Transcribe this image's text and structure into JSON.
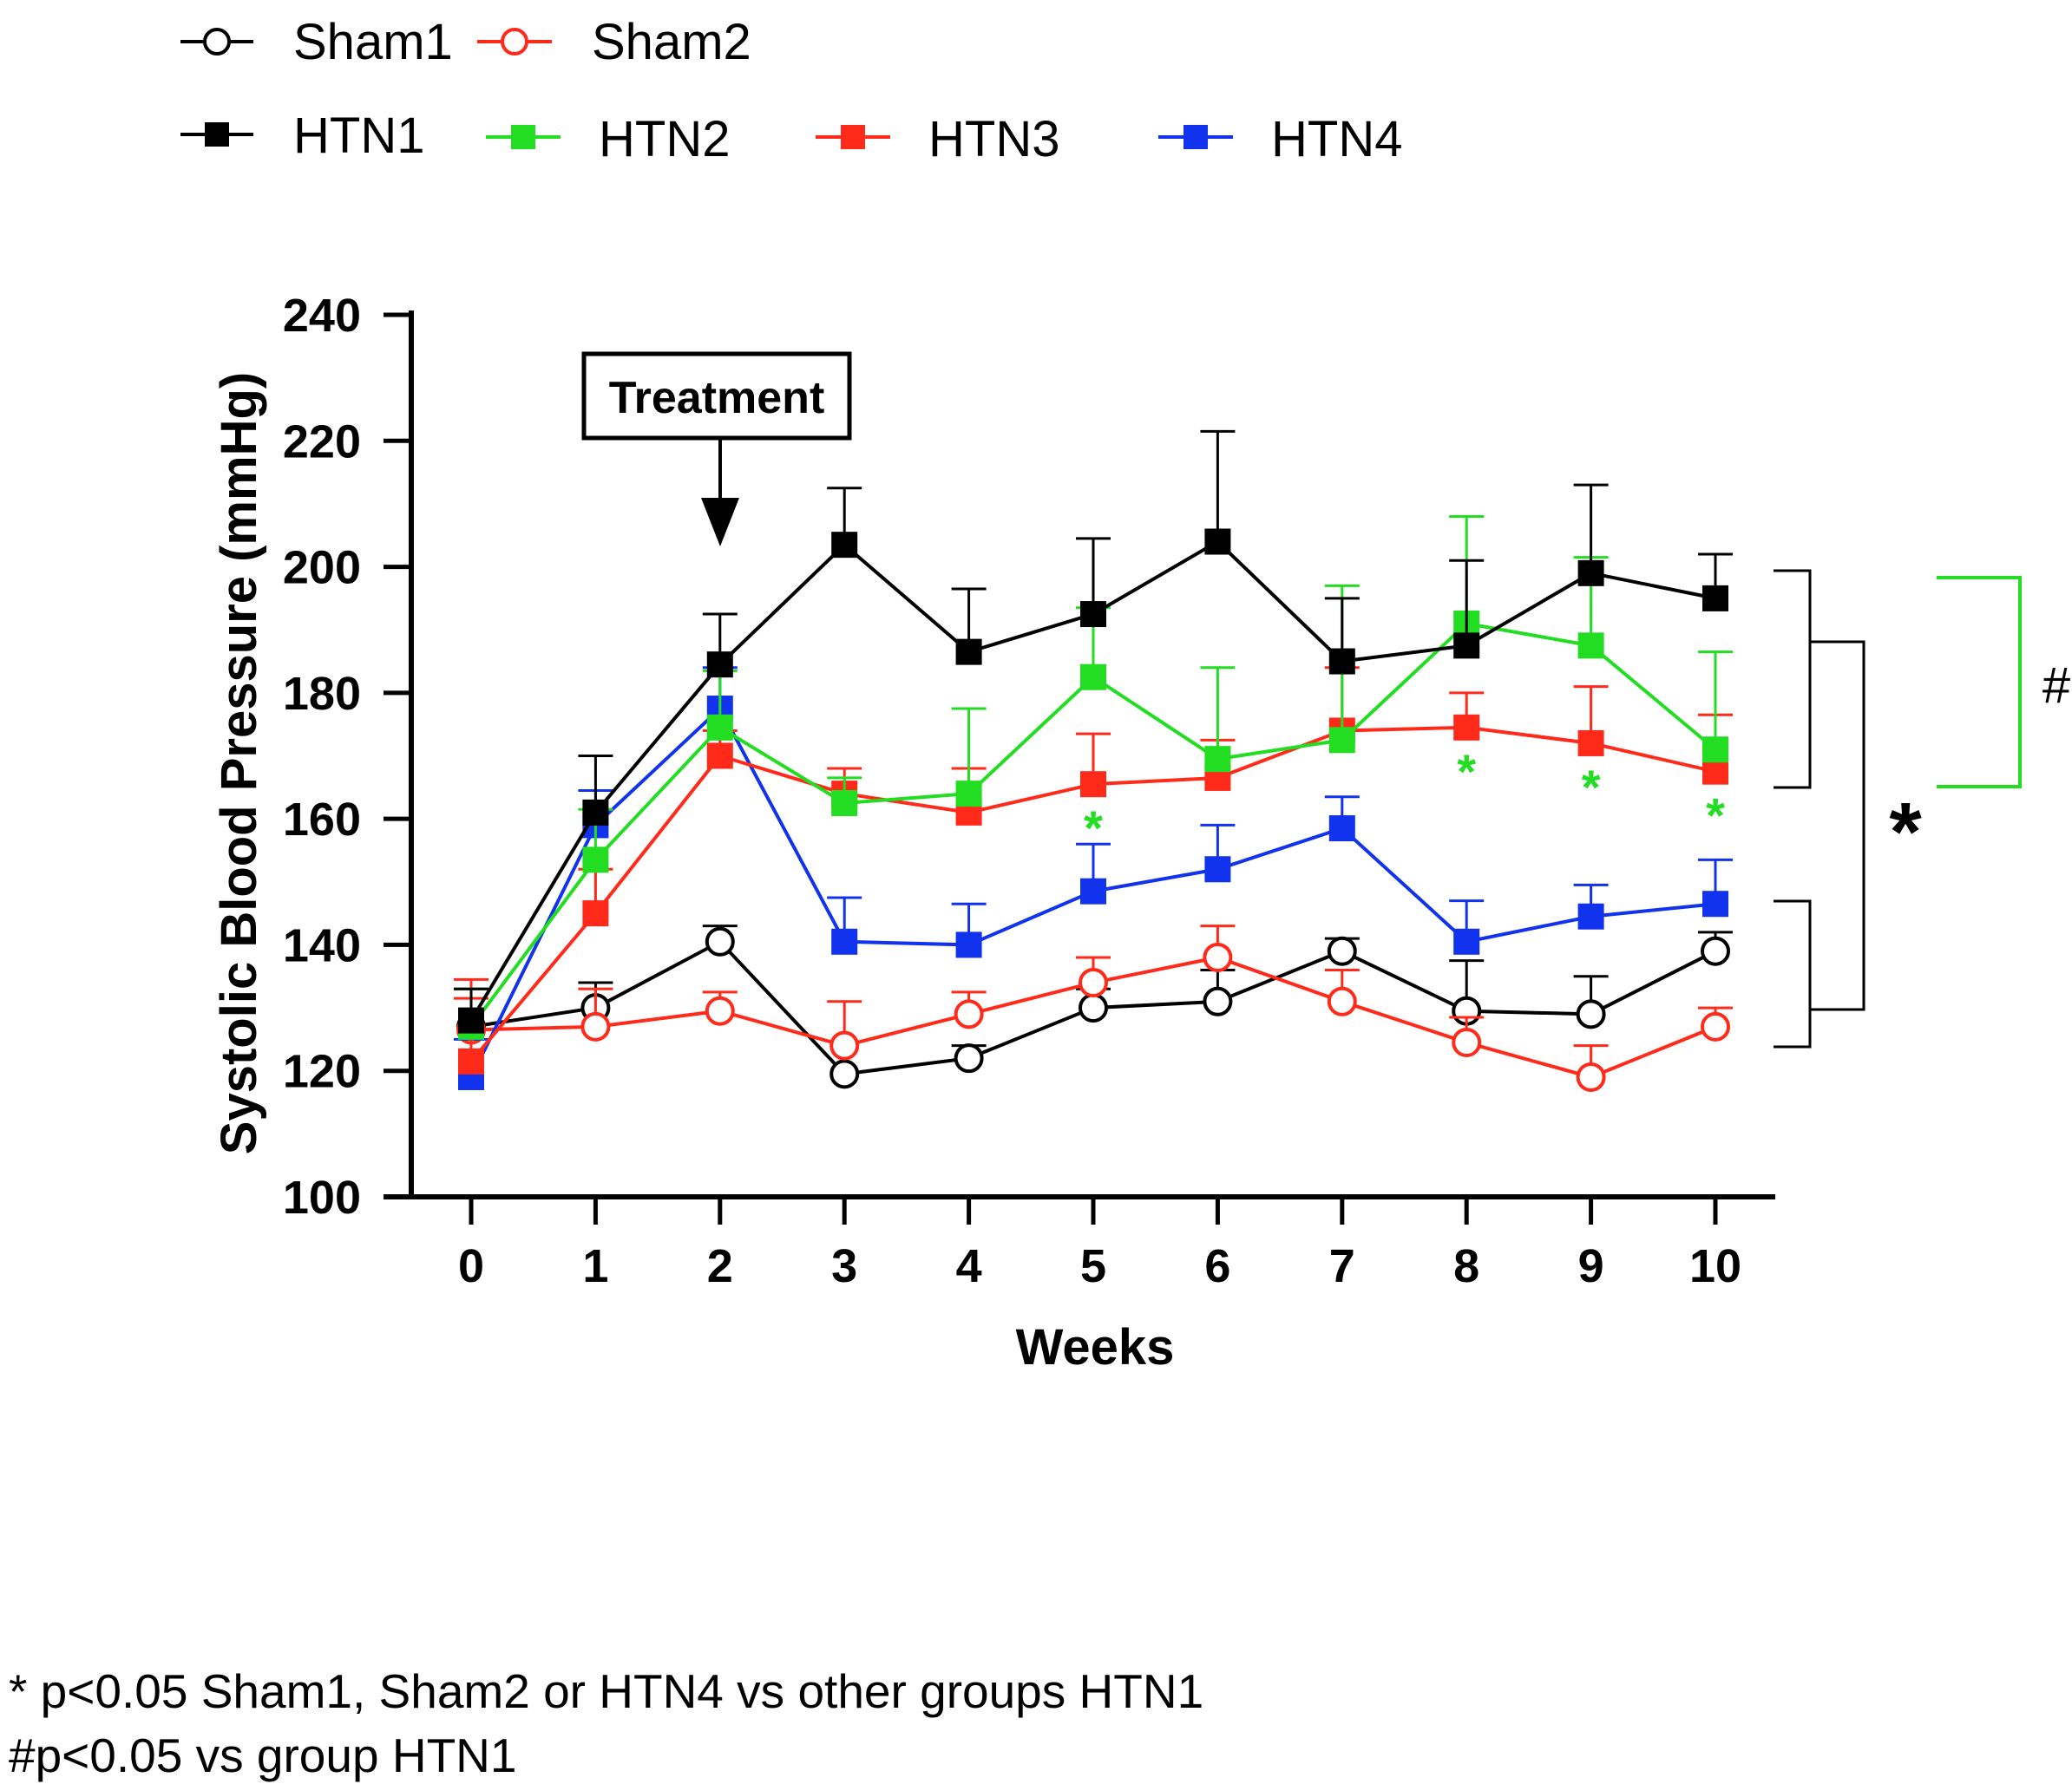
{
  "chart_data": {
    "type": "line",
    "xlabel": "Weeks",
    "ylabel": "Systolic Blood Pressure (mmHg)",
    "xlim": [
      0,
      10
    ],
    "ylim": [
      100,
      240
    ],
    "x": [
      0,
      1,
      2,
      3,
      4,
      5,
      6,
      7,
      8,
      9,
      10
    ],
    "x_ticks": [
      "0",
      "1",
      "2",
      "3",
      "4",
      "5",
      "6",
      "7",
      "8",
      "9",
      "10"
    ],
    "y_ticks": [
      "100",
      "120",
      "140",
      "160",
      "180",
      "200",
      "220",
      "240"
    ],
    "grid": false,
    "legend_position": "top-left",
    "series": [
      {
        "name": "Sham1",
        "color": "#000000",
        "marker": "open-circle",
        "values": [
          127,
          130,
          140.5,
          119.5,
          122,
          130,
          131,
          139,
          129.5,
          129,
          139
        ],
        "errors": [
          6,
          4,
          2.5,
          0,
          2,
          3,
          5,
          2,
          8,
          6,
          3
        ]
      },
      {
        "name": "Sham2",
        "color": "#ff2a1a",
        "marker": "open-circle",
        "values": [
          126.5,
          127,
          129.5,
          124,
          129,
          134,
          138,
          131,
          124.5,
          119,
          127
        ],
        "errors": [
          8,
          6,
          3,
          7,
          3.5,
          4,
          5,
          5,
          4,
          5,
          3
        ]
      },
      {
        "name": "HTN1",
        "color": "#000000",
        "marker": "filled-square",
        "values": [
          128,
          161,
          184.5,
          203.5,
          186.5,
          192.5,
          204,
          185,
          187.5,
          199,
          195
        ],
        "errors": [
          5,
          9,
          8,
          9,
          10,
          12,
          17.5,
          10,
          13.5,
          14,
          7
        ]
      },
      {
        "name": "HTN2",
        "color": "#22dd22",
        "marker": "filled-square",
        "values": [
          127,
          153.5,
          174.5,
          162.5,
          164,
          182.5,
          169.5,
          172.5,
          191,
          187.5,
          171
        ],
        "errors": [
          6,
          8,
          9,
          4,
          13.5,
          11,
          14.5,
          24.5,
          17,
          14,
          15.5
        ]
      },
      {
        "name": "HTN3",
        "color": "#ff2a1a",
        "marker": "filled-square",
        "values": [
          121.5,
          145,
          170,
          164,
          161,
          165.5,
          166.5,
          174,
          174.5,
          172,
          167.5
        ],
        "errors": [
          10,
          7,
          4,
          4,
          7,
          8,
          6,
          10,
          5.5,
          9,
          9
        ]
      },
      {
        "name": "HTN4",
        "color": "#1133ee",
        "marker": "filled-square",
        "values": [
          119,
          159,
          177.5,
          140.5,
          140,
          148.5,
          152,
          158.5,
          140.5,
          144.5,
          146.5
        ],
        "errors": [
          6,
          5.5,
          6.5,
          7,
          6.5,
          7.5,
          7,
          5,
          6.5,
          5,
          7
        ]
      }
    ],
    "annotations": {
      "treatment_label": "Treatment",
      "treatment_week": 2,
      "green_star": "*",
      "green_star_weeks": [
        5,
        8,
        9,
        10
      ],
      "bracket_star": "*",
      "bracket_hash": "#"
    }
  },
  "legend": {
    "row1": [
      "Sham1",
      "Sham2"
    ],
    "row2": [
      "HTN1",
      "HTN2",
      "HTN3",
      "HTN4"
    ]
  },
  "footnotes": {
    "line1": "* p<0.05 Sham1, Sham2 or HTN4 vs other groups HTN1",
    "line2": "#p<0.05 vs  group HTN1"
  },
  "colors": {
    "black": "#000000",
    "red": "#ff2a1a",
    "green": "#22dd22",
    "blue": "#1133ee"
  }
}
